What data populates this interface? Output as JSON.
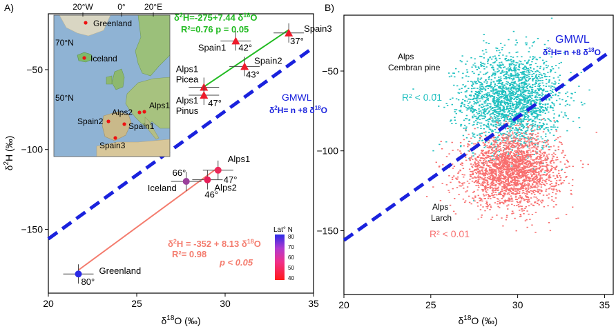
{
  "chart_data": [
    {
      "type": "scatter",
      "panel_label": "A)",
      "xlabel": "δ18O (‰)",
      "ylabel": "δ2H (‰)",
      "xlim": [
        20,
        35
      ],
      "ylim": [
        -190,
        -15
      ],
      "x_ticks": [
        "20",
        "25",
        "30",
        "35"
      ],
      "y_ticks": [
        "-50",
        "-100",
        "-150"
      ],
      "points": [
        {
          "name": "Greenland",
          "lat": "80°",
          "x": 21.7,
          "y": -178,
          "color": "#2a2ae6"
        },
        {
          "name": "Iceland",
          "lat": "66°",
          "x": 27.8,
          "y": -120,
          "color": "#9b3f9b"
        },
        {
          "name": "Alps2",
          "lat": "46°",
          "x": 29.0,
          "y": -119,
          "color": "#e8205a"
        },
        {
          "name": "Alps1",
          "lat": "47°",
          "x": 29.6,
          "y": -113,
          "color": "#ec2a5a"
        },
        {
          "name": "Spain1",
          "lat": "42°",
          "x": 30.6,
          "y": -32,
          "color": "#ee1a2a"
        },
        {
          "name": "Spain2",
          "lat": "43°",
          "x": 31.1,
          "y": -48,
          "color": "#ee1a2a"
        },
        {
          "name": "Spain3",
          "lat": "37°",
          "x": 33.6,
          "y": -27,
          "color": "#ee1a2a"
        },
        {
          "name": "Alps1 Picea",
          "lat": "",
          "x": 28.8,
          "y": -61,
          "color": "#ee1a2a"
        },
        {
          "name": "Alps1 Pinus",
          "lat": "47°",
          "x": 28.8,
          "y": -66,
          "color": "#ee1a2a"
        }
      ],
      "regressions": [
        {
          "label": "δ2H = -352 + 8.13 δ18O",
          "stats": "R²= 0.98",
          "pvalue": "p < 0.05",
          "color": "#f47c6e",
          "x_from": 21.7,
          "x_to": 29.6,
          "intercept": -352,
          "slope": 8.13
        },
        {
          "label": "δ2H=-275+7.44 δ18O",
          "stats": "R²=0.76 p = 0.05",
          "color": "#22bb22",
          "x_from": 28.8,
          "x_to": 33.6,
          "intercept": -275,
          "slope": 7.44
        }
      ],
      "gmwl": {
        "label": "GMWL",
        "equation": "δ2H= n +8 δ18O",
        "x_from": 20,
        "x_to": 35,
        "y_from": -156,
        "y_to": -36,
        "color": "#1a22dd"
      },
      "legend": {
        "title": "Lat° N",
        "ticks": [
          "80",
          "70",
          "60",
          "50",
          "40"
        ]
      }
    },
    {
      "type": "scatter",
      "panel_label": "B)",
      "xlabel": "δ18O (‰)",
      "xlim": [
        20,
        35.5
      ],
      "ylim": [
        -190,
        -15
      ],
      "x_ticks": [
        "20",
        "25",
        "30",
        "35"
      ],
      "y_ticks": [
        "-50",
        "-100",
        "-150"
      ],
      "clusters": [
        {
          "name": "Alps Cembran pine",
          "r2": "R² < 0.01",
          "color": "#20c0c0",
          "cx": 29.6,
          "cy": -68,
          "sx": 1.4,
          "sy": 15,
          "n": 2200
        },
        {
          "name": "Alps Larch",
          "r2": "R² < 0.01",
          "color": "#f86f6f",
          "cx": 29.6,
          "cy": -112,
          "sx": 1.35,
          "sy": 11,
          "n": 2400
        }
      ],
      "gmwl": {
        "label": "GMWL",
        "equation": "δ2H= n +8 δ18O",
        "x_from": 20,
        "x_to": 35.3,
        "y_from": -156,
        "y_to": -38,
        "color": "#1a22dd"
      }
    }
  ],
  "map": {
    "lon_labels": [
      "20°W",
      "0°",
      "20°E"
    ],
    "lat_labels": [
      "70°N",
      "50°N"
    ],
    "sites": [
      "Greenland",
      "Iceland",
      "Alps1",
      "Alps2",
      "Spain2",
      "Spain1",
      "Spain3"
    ]
  }
}
